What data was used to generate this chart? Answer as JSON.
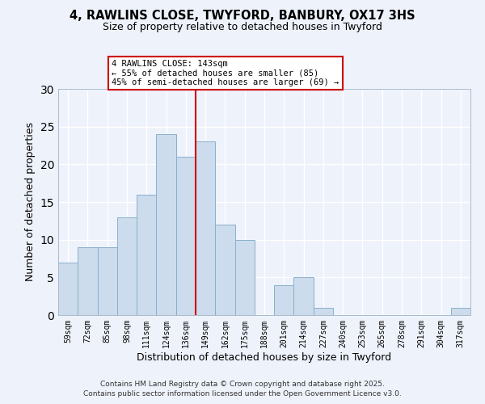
{
  "title": "4, RAWLINS CLOSE, TWYFORD, BANBURY, OX17 3HS",
  "subtitle": "Size of property relative to detached houses in Twyford",
  "xlabel": "Distribution of detached houses by size in Twyford",
  "ylabel": "Number of detached properties",
  "bar_color": "#ccdcec",
  "bar_edge_color": "#8ab0cc",
  "background_color": "#eef2fb",
  "grid_color": "#ffffff",
  "bin_labels": [
    "59sqm",
    "72sqm",
    "85sqm",
    "98sqm",
    "111sqm",
    "124sqm",
    "136sqm",
    "149sqm",
    "162sqm",
    "175sqm",
    "188sqm",
    "201sqm",
    "214sqm",
    "227sqm",
    "240sqm",
    "253sqm",
    "265sqm",
    "278sqm",
    "291sqm",
    "304sqm",
    "317sqm"
  ],
  "bar_heights": [
    7,
    9,
    9,
    13,
    16,
    24,
    21,
    23,
    12,
    10,
    0,
    4,
    5,
    1,
    0,
    0,
    0,
    0,
    0,
    0,
    1
  ],
  "vline_x": 6.5,
  "vline_color": "#cc0000",
  "ylim": [
    0,
    30
  ],
  "yticks": [
    0,
    5,
    10,
    15,
    20,
    25,
    30
  ],
  "annotation_title": "4 RAWLINS CLOSE: 143sqm",
  "annotation_line1": "← 55% of detached houses are smaller (85)",
  "annotation_line2": "45% of semi-detached houses are larger (69) →",
  "footer_line1": "Contains HM Land Registry data © Crown copyright and database right 2025.",
  "footer_line2": "Contains public sector information licensed under the Open Government Licence v3.0."
}
